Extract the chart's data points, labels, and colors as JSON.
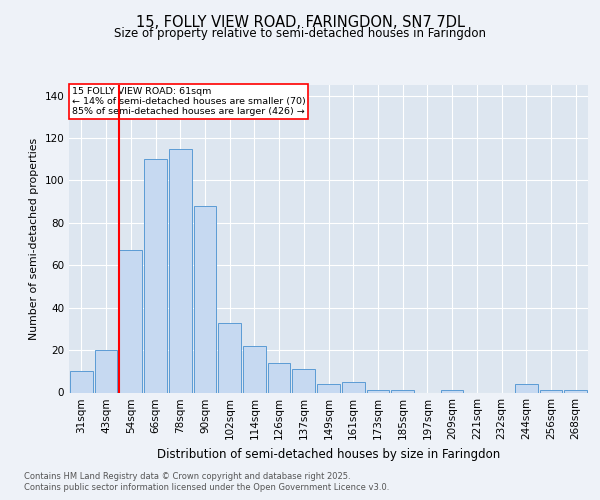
{
  "title1": "15, FOLLY VIEW ROAD, FARINGDON, SN7 7DL",
  "title2": "Size of property relative to semi-detached houses in Faringdon",
  "xlabel": "Distribution of semi-detached houses by size in Faringdon",
  "ylabel": "Number of semi-detached properties",
  "categories": [
    "31sqm",
    "43sqm",
    "54sqm",
    "66sqm",
    "78sqm",
    "90sqm",
    "102sqm",
    "114sqm",
    "126sqm",
    "137sqm",
    "149sqm",
    "161sqm",
    "173sqm",
    "185sqm",
    "197sqm",
    "209sqm",
    "221sqm",
    "232sqm",
    "244sqm",
    "256sqm",
    "268sqm"
  ],
  "values": [
    10,
    20,
    67,
    110,
    115,
    88,
    33,
    22,
    14,
    11,
    4,
    5,
    1,
    1,
    0,
    1,
    0,
    0,
    4,
    1,
    1
  ],
  "bar_color": "#c6d9f1",
  "bar_edge_color": "#5b9bd5",
  "annotation_title": "15 FOLLY VIEW ROAD: 61sqm",
  "annotation_line1": "← 14% of semi-detached houses are smaller (70)",
  "annotation_line2": "85% of semi-detached houses are larger (426) →",
  "ylim": [
    0,
    145
  ],
  "footer1": "Contains HM Land Registry data © Crown copyright and database right 2025.",
  "footer2": "Contains public sector information licensed under the Open Government Licence v3.0.",
  "bg_color": "#eef2f8",
  "plot_bg_color": "#dde6f0"
}
